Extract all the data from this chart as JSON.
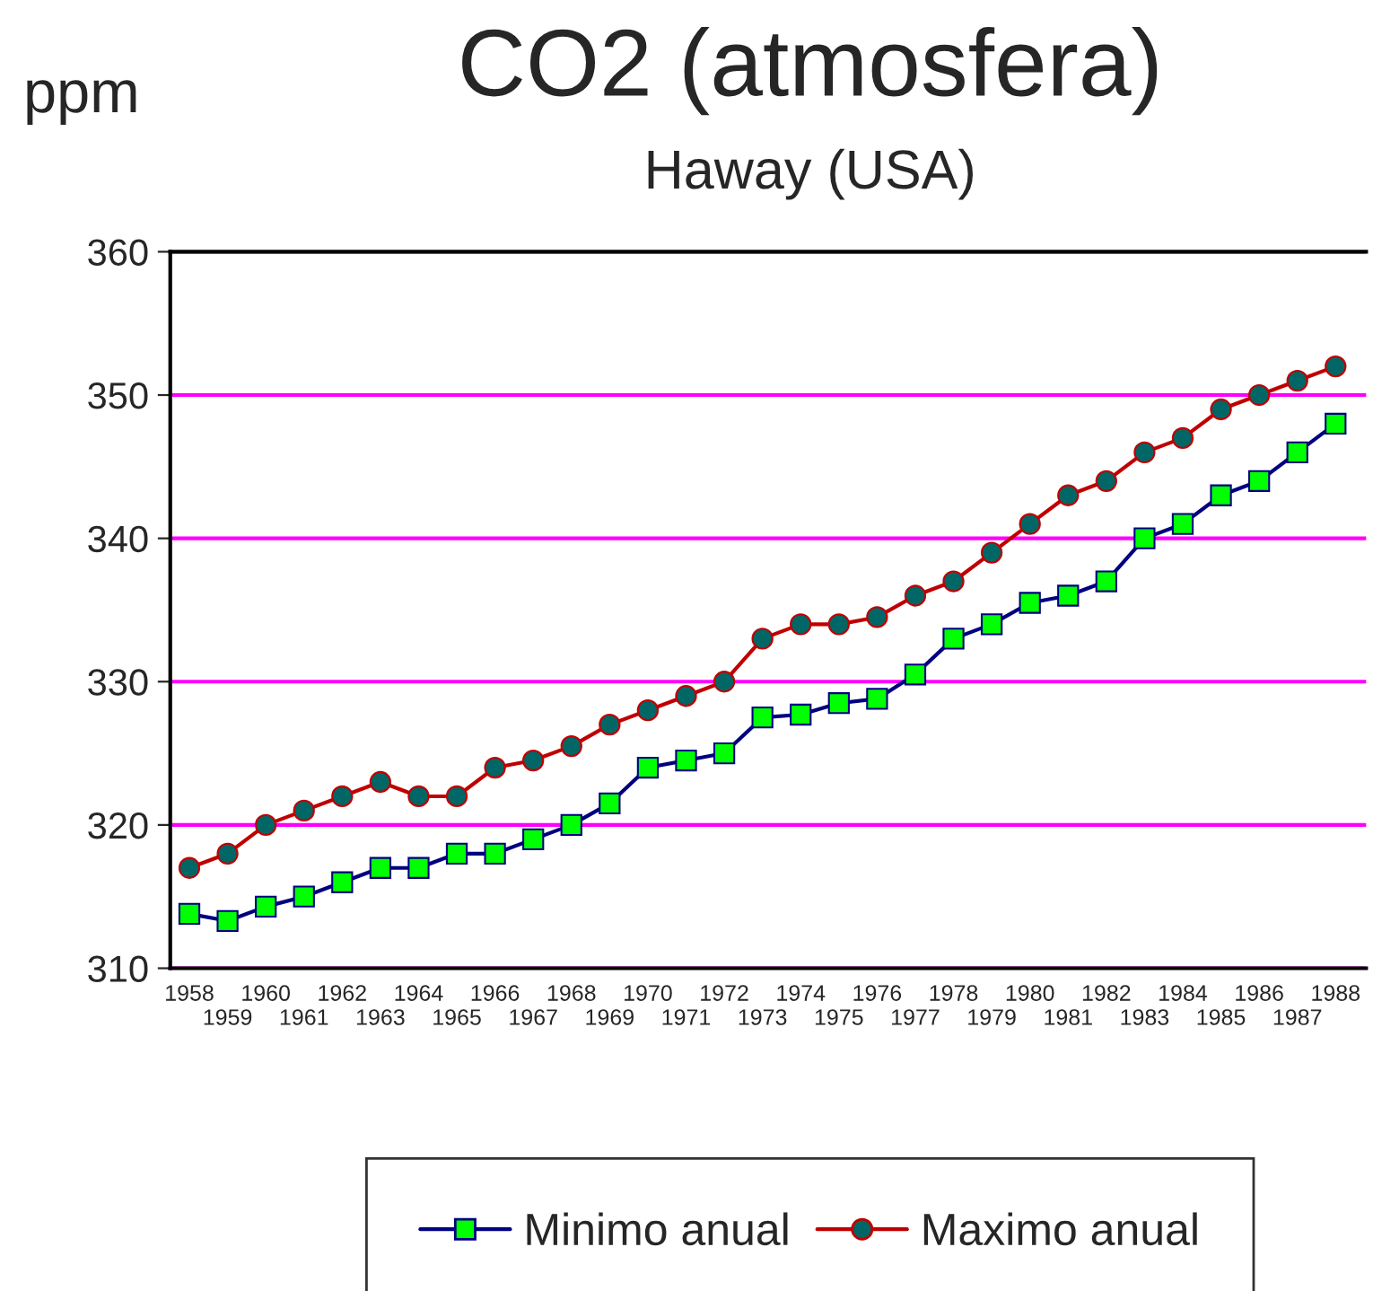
{
  "chart_data": {
    "type": "line",
    "title": "CO2 (atmosfera)",
    "subtitle": "Haway (USA)",
    "ylabel": "ppm",
    "categories": [
      "1958",
      "1959",
      "1960",
      "1961",
      "1962",
      "1963",
      "1964",
      "1965",
      "1966",
      "1967",
      "1968",
      "1969",
      "1970",
      "1971",
      "1972",
      "1973",
      "1974",
      "1975",
      "1976",
      "1977",
      "1978",
      "1979",
      "1980",
      "1981",
      "1982",
      "1983",
      "1984",
      "1985",
      "1986",
      "1987",
      "1988"
    ],
    "series": [
      {
        "name": "Minimo anual",
        "color": "#000080",
        "marker": "square",
        "values": [
          313.8,
          313.3,
          314.3,
          315,
          316,
          317,
          317,
          318,
          318,
          319,
          320,
          321.5,
          324,
          324.5,
          325,
          327.5,
          327.7,
          328.5,
          328.8,
          330.5,
          333,
          334,
          335.5,
          336,
          337,
          340,
          341,
          343,
          344,
          346,
          348
        ]
      },
      {
        "name": "Maximo anual",
        "color": "#c00000",
        "marker": "circle",
        "values": [
          317,
          318,
          320,
          321,
          322,
          323,
          322,
          322,
          324,
          324.5,
          325.5,
          327,
          328,
          329,
          330,
          333,
          334,
          334,
          334.5,
          336,
          337,
          339,
          341,
          343,
          344,
          346,
          347,
          349,
          350,
          351,
          352
        ]
      }
    ],
    "ylim": [
      310,
      360
    ],
    "yticks": [
      310,
      320,
      330,
      340,
      350,
      360
    ],
    "grid": "y",
    "legend": "bottom",
    "line_style": "solid"
  }
}
